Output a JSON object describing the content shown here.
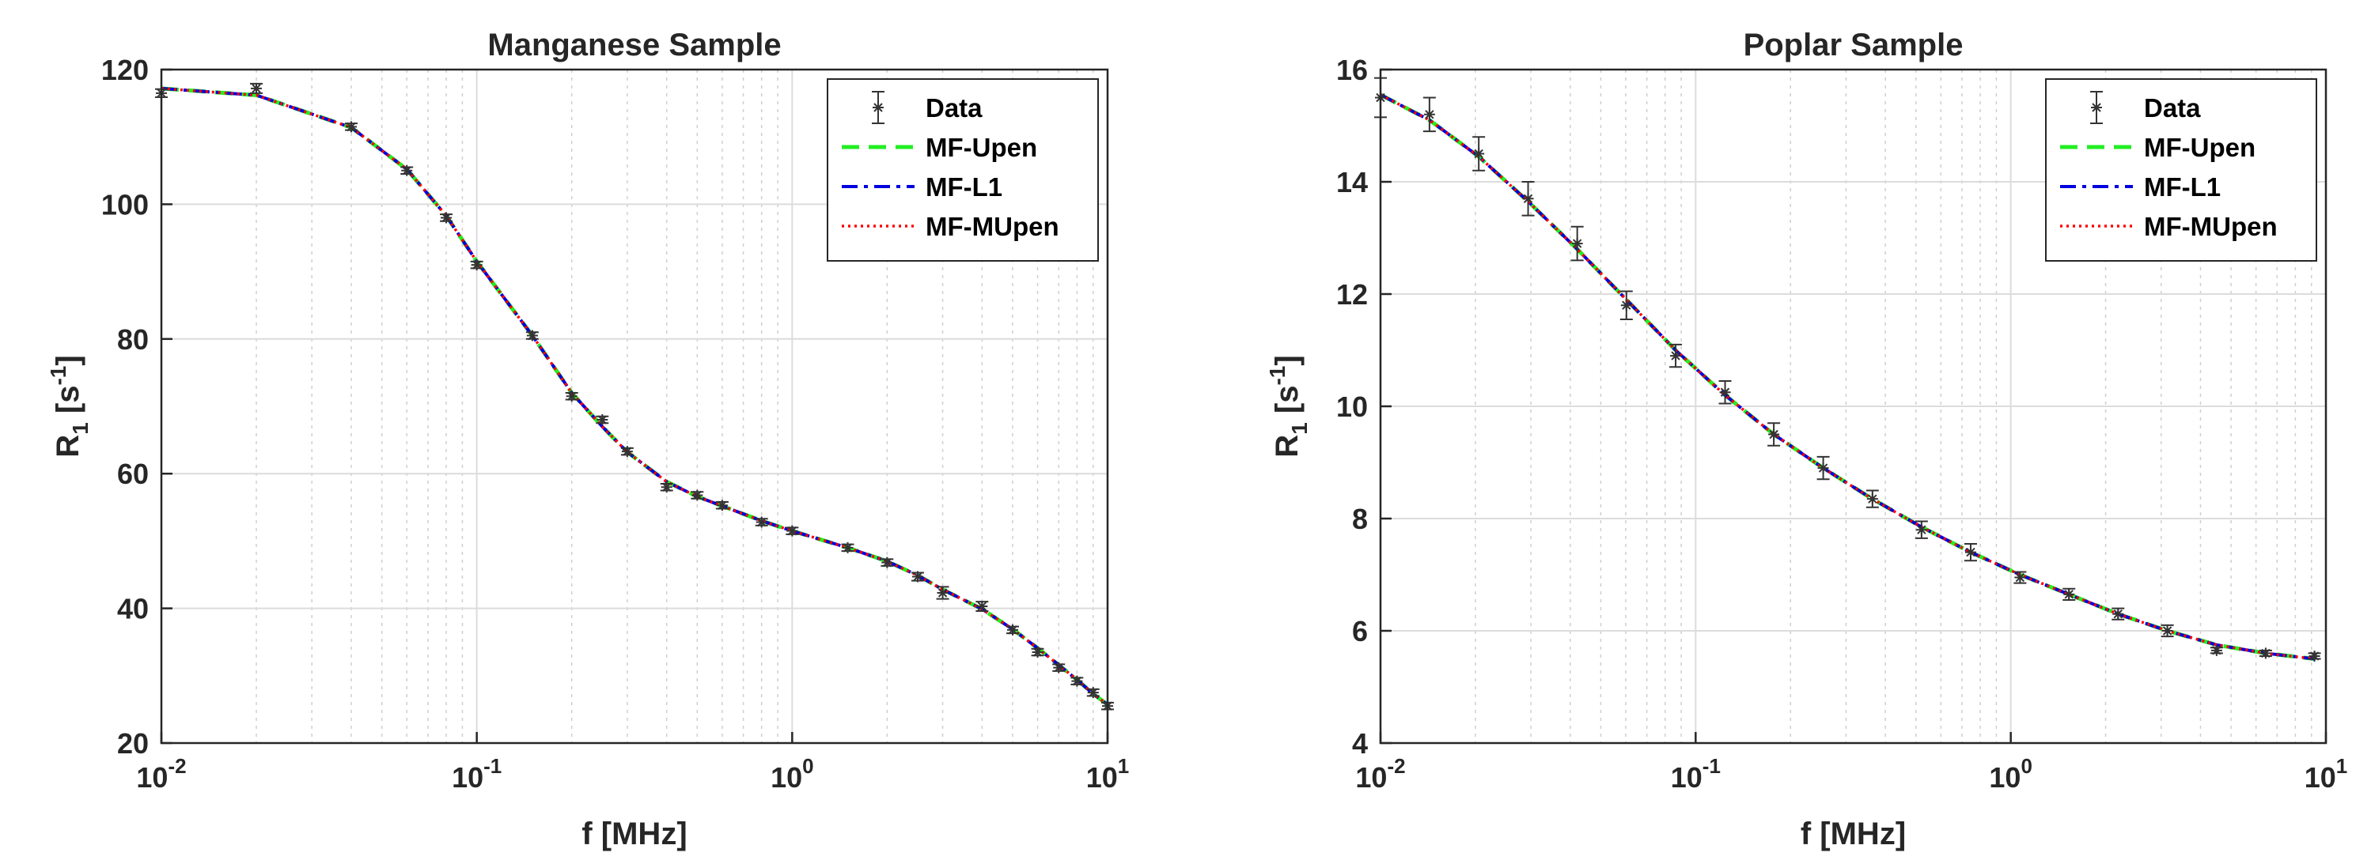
{
  "chart_data": [
    {
      "type": "line",
      "title": "Manganese Sample",
      "xlabel": "f  [MHz]",
      "ylabel": {
        "base": "R",
        "sub": "1",
        "unit_open": " [s",
        "unit_sup": "-1",
        "unit_close": "]"
      },
      "xscale": "log",
      "xlim": [
        0.01,
        10
      ],
      "ylim": [
        20,
        120
      ],
      "xticks": [
        {
          "value": 0.01,
          "base": "10",
          "exp": "-2"
        },
        {
          "value": 0.1,
          "base": "10",
          "exp": "-1"
        },
        {
          "value": 1,
          "base": "10",
          "exp": "0"
        },
        {
          "value": 10,
          "base": "10",
          "exp": "1"
        }
      ],
      "yticks": [
        "20",
        "40",
        "60",
        "80",
        "100",
        "120"
      ],
      "grid": true,
      "legend_position": "top-right",
      "legend": [
        "Data",
        "MF-Upen",
        "MF-L1",
        "MF-MUpen"
      ],
      "colors": {
        "data": "#333333",
        "upen": "#22ee22",
        "l1": "#0000dd",
        "mupen": "#ff0000"
      },
      "data_points": {
        "x": [
          0.01,
          0.02,
          0.04,
          0.06,
          0.08,
          0.1,
          0.15,
          0.2,
          0.25,
          0.3,
          0.4,
          0.5,
          0.6,
          0.8,
          1.0,
          1.5,
          2.0,
          2.5,
          3.0,
          4.0,
          5.0,
          6.0,
          7.0,
          8.0,
          9.0,
          10.0
        ],
        "y": [
          116.5,
          117.2,
          111.5,
          105.0,
          98.0,
          91.0,
          80.5,
          71.5,
          68.0,
          63.3,
          58.0,
          56.8,
          55.3,
          52.8,
          51.5,
          49.0,
          46.8,
          44.7,
          42.3,
          40.3,
          36.8,
          33.5,
          31.2,
          29.2,
          27.5,
          25.5
        ],
        "err": [
          0.6,
          0.7,
          0.5,
          0.5,
          0.5,
          0.5,
          0.5,
          0.5,
          0.5,
          0.5,
          0.5,
          0.5,
          0.5,
          0.5,
          0.5,
          0.5,
          0.5,
          0.6,
          0.9,
          0.7,
          0.5,
          0.5,
          0.5,
          0.5,
          0.5,
          0.5
        ]
      },
      "fit": {
        "x": [
          0.01,
          0.02,
          0.04,
          0.06,
          0.08,
          0.1,
          0.15,
          0.2,
          0.25,
          0.3,
          0.4,
          0.5,
          0.6,
          0.8,
          1.0,
          1.5,
          2.0,
          2.5,
          3.0,
          4.0,
          5.0,
          6.0,
          7.0,
          8.0,
          9.0,
          10.0
        ],
        "y": [
          117.2,
          116.2,
          111.4,
          105.2,
          98.3,
          91.5,
          80.5,
          72.0,
          67.0,
          63.2,
          58.8,
          56.6,
          55.2,
          53.0,
          51.5,
          49.0,
          47.0,
          44.9,
          42.8,
          39.9,
          36.9,
          34.1,
          31.6,
          29.4,
          27.3,
          25.7
        ]
      }
    },
    {
      "type": "line",
      "title": "Poplar Sample",
      "xlabel": "f  [MHz]",
      "ylabel": {
        "base": "R",
        "sub": "1",
        "unit_open": " [s",
        "unit_sup": "-1",
        "unit_close": "]"
      },
      "xscale": "log",
      "xlim": [
        0.01,
        10
      ],
      "ylim": [
        4,
        16
      ],
      "xticks": [
        {
          "value": 0.01,
          "base": "10",
          "exp": "-2"
        },
        {
          "value": 0.1,
          "base": "10",
          "exp": "-1"
        },
        {
          "value": 1,
          "base": "10",
          "exp": "0"
        },
        {
          "value": 10,
          "base": "10",
          "exp": "1"
        }
      ],
      "yticks": [
        "4",
        "6",
        "8",
        "10",
        "12",
        "14",
        "16"
      ],
      "grid": true,
      "legend_position": "top-right",
      "legend": [
        "Data",
        "MF-Upen",
        "MF-L1",
        "MF-MUpen"
      ],
      "colors": {
        "data": "#333333",
        "upen": "#22ee22",
        "l1": "#0000dd",
        "mupen": "#ff0000"
      },
      "data_points": {
        "x": [
          0.01,
          0.0143,
          0.0205,
          0.0294,
          0.0421,
          0.0603,
          0.0864,
          0.124,
          0.177,
          0.254,
          0.364,
          0.521,
          0.746,
          1.07,
          1.53,
          2.19,
          3.14,
          4.5,
          6.44,
          9.2
        ],
        "y": [
          15.5,
          15.2,
          14.5,
          13.7,
          12.9,
          11.8,
          10.9,
          10.25,
          9.5,
          8.9,
          8.35,
          7.8,
          7.4,
          6.95,
          6.65,
          6.3,
          6.0,
          5.65,
          5.6,
          5.55
        ],
        "err": [
          0.35,
          0.3,
          0.3,
          0.3,
          0.3,
          0.25,
          0.2,
          0.2,
          0.2,
          0.2,
          0.15,
          0.15,
          0.15,
          0.1,
          0.1,
          0.1,
          0.1,
          0.05,
          0.05,
          0.05
        ]
      },
      "fit": {
        "x": [
          0.01,
          0.0143,
          0.0205,
          0.0294,
          0.0421,
          0.0603,
          0.0864,
          0.124,
          0.177,
          0.254,
          0.364,
          0.521,
          0.746,
          1.07,
          1.53,
          2.19,
          3.14,
          4.5,
          6.44,
          9.2
        ],
        "y": [
          15.55,
          15.1,
          14.45,
          13.65,
          12.8,
          11.9,
          11.0,
          10.2,
          9.5,
          8.9,
          8.35,
          7.85,
          7.4,
          7.0,
          6.65,
          6.3,
          6.0,
          5.75,
          5.6,
          5.5
        ]
      }
    }
  ]
}
